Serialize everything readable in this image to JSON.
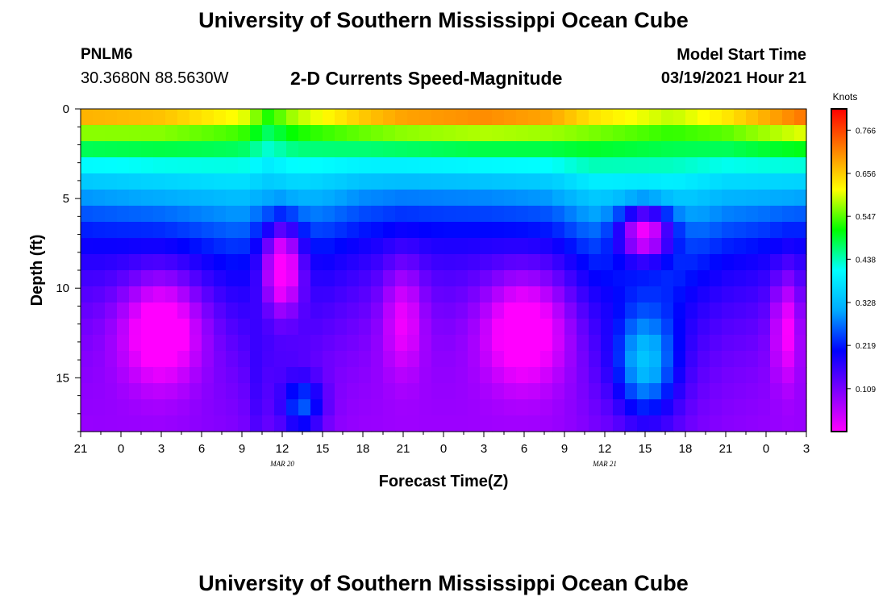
{
  "header": {
    "title": "University of Southern Mississippi Ocean Cube",
    "station_id": "PNLM6",
    "coordinates": "30.3680N 88.5630W",
    "subtitle": "2-D Currents Speed-Magnitude",
    "model_start_label": "Model Start Time",
    "model_start_value": "03/19/2021 Hour 21"
  },
  "footer": {
    "title": "University of Southern Mississippi Ocean Cube"
  },
  "chart_data": {
    "type": "heatmap",
    "title": "2-D Currents Speed-Magnitude",
    "xlabel": "Forecast Time(Z)",
    "ylabel": "Depth (ft)",
    "x_hours_range": [
      0,
      54
    ],
    "x_tick_labels": [
      "21",
      "0",
      "3",
      "6",
      "9",
      "12",
      "15",
      "18",
      "21",
      "0",
      "3",
      "6",
      "9",
      "12",
      "15",
      "18",
      "21",
      "0",
      "3"
    ],
    "date_labels": [
      {
        "text": "MAR 20",
        "hour": 15
      },
      {
        "text": "MAR 21",
        "hour": 39
      }
    ],
    "y_range": [
      0,
      18
    ],
    "y_ticks": [
      0,
      5,
      10,
      15
    ],
    "colorbar": {
      "unit": "Knots",
      "min": 0,
      "max": 0.82,
      "tick_labels": [
        "0.766",
        "0.656",
        "0.547",
        "0.438",
        "0.328",
        "0.219",
        "0.109"
      ],
      "tick_values": [
        0.766,
        0.656,
        0.547,
        0.438,
        0.328,
        0.219,
        0.109
      ],
      "stops": [
        "#ff00ff",
        "#8000ff",
        "#0000ff",
        "#00aaff",
        "#00ffff",
        "#00ff00",
        "#ffff00",
        "#ff8000",
        "#ff0000"
      ]
    },
    "surface_speed_by_hour": [
      [
        0,
        0.74
      ],
      [
        6,
        0.72
      ],
      [
        12,
        0.65
      ],
      [
        14,
        0.55
      ],
      [
        16,
        0.62
      ],
      [
        21,
        0.72
      ],
      [
        24,
        0.76
      ],
      [
        30,
        0.78
      ],
      [
        35,
        0.75
      ],
      [
        38,
        0.68
      ],
      [
        44,
        0.62
      ],
      [
        48,
        0.68
      ],
      [
        54,
        0.8
      ]
    ],
    "surface_decay_by_hour": [
      [
        0,
        0.22
      ],
      [
        6,
        0.2
      ],
      [
        12,
        0.16
      ],
      [
        14,
        0.13
      ],
      [
        16,
        0.15
      ],
      [
        21,
        0.22
      ],
      [
        24,
        0.24
      ],
      [
        30,
        0.24
      ],
      [
        35,
        0.22
      ],
      [
        38,
        0.16
      ],
      [
        44,
        0.13
      ],
      [
        48,
        0.18
      ],
      [
        54,
        0.23
      ]
    ],
    "deep_features": [
      {
        "hour": 6,
        "depth": 12.5,
        "value": -0.05,
        "hour_width": 3,
        "depth_width": 3
      },
      {
        "hour": 15,
        "depth": 9,
        "value": -0.04,
        "hour_width": 1.5,
        "depth_width": 2.5
      },
      {
        "hour": 24,
        "depth": 12,
        "value": 0.01,
        "hour_width": 1.5,
        "depth_width": 3
      },
      {
        "hour": 33,
        "depth": 12.5,
        "value": -0.05,
        "hour_width": 3,
        "depth_width": 3
      },
      {
        "hour": 42,
        "depth": 7,
        "value": 0.0,
        "hour_width": 2,
        "depth_width": 1.5
      },
      {
        "hour": 42,
        "depth": 14,
        "value": 0.34,
        "hour_width": 2.2,
        "depth_width": 3
      },
      {
        "hour": 52.5,
        "depth": 12.5,
        "value": 0.0,
        "hour_width": 1,
        "depth_width": 3
      },
      {
        "hour": 16.5,
        "depth": 16.5,
        "value": 0.26,
        "hour_width": 1.5,
        "depth_width": 1.5
      },
      {
        "hour": 13,
        "depth": 14,
        "value": 0.16,
        "hour_width": 0.6,
        "depth_width": 5
      }
    ]
  }
}
